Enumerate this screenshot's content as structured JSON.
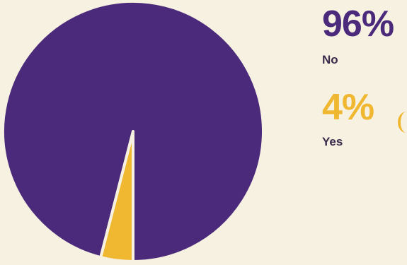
{
  "chart_data": {
    "type": "pie",
    "categories": [
      "No",
      "Yes"
    ],
    "values": [
      96,
      4
    ],
    "percent_labels": [
      "96%",
      "4%"
    ],
    "colors": [
      "#4b2a7b",
      "#f0b731"
    ],
    "legend_placement": "right"
  }
}
